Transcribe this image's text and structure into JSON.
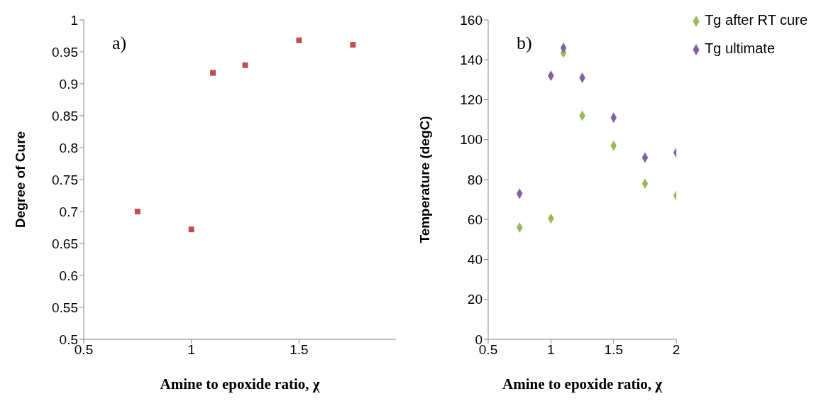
{
  "chart_data": [
    {
      "type": "scatter",
      "annotations": [
        "a)"
      ],
      "xlabel": "Amine to epoxide ratio, χ",
      "ylabel": "Degree of Cure",
      "x": [
        0.75,
        1.0,
        1.1,
        1.25,
        1.5,
        1.75
      ],
      "series": [
        {
          "color": "#c0504d",
          "values": [
            0.7,
            0.672,
            0.917,
            0.929,
            0.968,
            0.961
          ]
        }
      ],
      "xlim": [
        0.5,
        1.95
      ],
      "xticks": [
        0.5,
        1,
        1.5
      ],
      "ylim": [
        0.5,
        1
      ],
      "yticks": [
        0.5,
        0.55,
        0.6,
        0.65,
        0.7,
        0.75,
        0.8,
        0.85,
        0.9,
        0.95,
        1
      ],
      "marker": "square",
      "grid": false,
      "legend": false
    },
    {
      "type": "scatter",
      "annotations": [
        "b)"
      ],
      "xlabel": "Amine to epoxide ratio, χ",
      "ylabel": "Temperature (degC)",
      "x": [
        0.75,
        1.0,
        1.1,
        1.25,
        1.5,
        1.75,
        2.0
      ],
      "series": [
        {
          "name": "Tg after RT cure",
          "color": "#9bbb59",
          "values": [
            56,
            60.5,
            143.5,
            112,
            97,
            78,
            72
          ]
        },
        {
          "name": "Tg ultimate",
          "color": "#8064a2",
          "values": [
            73,
            132,
            146,
            131,
            111,
            91,
            93.5
          ]
        }
      ],
      "xlim": [
        0.5,
        2
      ],
      "xticks": [
        0.5,
        1,
        1.5,
        2
      ],
      "ylim": [
        0,
        160
      ],
      "yticks": [
        0,
        20,
        40,
        60,
        80,
        100,
        120,
        140,
        160
      ],
      "marker": "diamond",
      "grid": false,
      "legend": "top right"
    }
  ]
}
